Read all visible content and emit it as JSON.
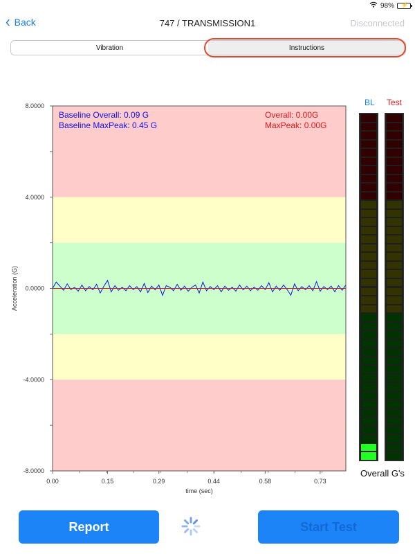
{
  "status_bar": {
    "battery_percent": "98%",
    "battery_level": 0.98
  },
  "nav": {
    "back_label": "Back",
    "title": "747 / TRANSMISSION1",
    "connection_status": "Disconnected"
  },
  "segments": {
    "vibration": "Vibration",
    "instructions": "Instructions",
    "highlighted": "Instructions"
  },
  "chart_data": {
    "type": "line",
    "ylabel": "Acceleration (G)",
    "xlabel": "time (sec)",
    "ylim": [
      -8,
      8
    ],
    "xlim": [
      0,
      0.8
    ],
    "y_ticks": [
      8,
      4,
      0,
      -4,
      -8
    ],
    "y_tick_labels": [
      "8.0000",
      "4.0000",
      "0.0000",
      "-4.0000",
      "-8.0000"
    ],
    "x_ticks": [
      0,
      0.15,
      0.29,
      0.44,
      0.58,
      0.73
    ],
    "x_tick_labels": [
      "0.00",
      "0.15",
      "0.29",
      "0.44",
      "0.58",
      "0.73"
    ],
    "bands": [
      {
        "from": 4,
        "to": 8,
        "color": "#ffcccc"
      },
      {
        "from": 2,
        "to": 4,
        "color": "#ffffc8"
      },
      {
        "from": -2,
        "to": 2,
        "color": "#ccffcc"
      },
      {
        "from": -4,
        "to": -2,
        "color": "#ffffc8"
      },
      {
        "from": -8,
        "to": -4,
        "color": "#ffcccc"
      }
    ],
    "annotations_left": [
      "Baseline Overall: 0.09 G",
      "Baseline MaxPeak: 0.45 G"
    ],
    "annotations_right": [
      "Overall: 0.00G",
      "MaxPeak: 0.00G"
    ],
    "series": [
      {
        "color": "#1010ee",
        "x": [
          0.0,
          0.01,
          0.02,
          0.03,
          0.04,
          0.05,
          0.06,
          0.07,
          0.08,
          0.09,
          0.1,
          0.11,
          0.12,
          0.13,
          0.14,
          0.15,
          0.16,
          0.17,
          0.18,
          0.19,
          0.2,
          0.21,
          0.22,
          0.23,
          0.24,
          0.25,
          0.26,
          0.27,
          0.28,
          0.29,
          0.3,
          0.31,
          0.32,
          0.33,
          0.34,
          0.35,
          0.36,
          0.37,
          0.38,
          0.39,
          0.4,
          0.41,
          0.42,
          0.43,
          0.44,
          0.45,
          0.46,
          0.47,
          0.48,
          0.49,
          0.5,
          0.51,
          0.52,
          0.53,
          0.54,
          0.55,
          0.56,
          0.57,
          0.58,
          0.59,
          0.6,
          0.61,
          0.62,
          0.63,
          0.64,
          0.65,
          0.66,
          0.67,
          0.68,
          0.69,
          0.7,
          0.71,
          0.72,
          0.73,
          0.74,
          0.75,
          0.76,
          0.77,
          0.78,
          0.79,
          0.8
        ],
        "values": [
          0.0,
          0.28,
          0.1,
          -0.08,
          0.2,
          -0.05,
          0.05,
          -0.12,
          0.15,
          -0.1,
          0.08,
          -0.06,
          0.18,
          -0.2,
          0.1,
          0.35,
          -0.15,
          0.12,
          -0.08,
          0.05,
          -0.1,
          0.12,
          -0.05,
          0.08,
          -0.15,
          0.22,
          -0.18,
          0.1,
          -0.06,
          0.15,
          -0.3,
          0.12,
          0.05,
          -0.1,
          0.18,
          -0.08,
          0.1,
          -0.12,
          0.05,
          0.15,
          -0.2,
          0.28,
          -0.1,
          0.08,
          -0.05,
          0.12,
          -0.15,
          0.1,
          -0.08,
          0.05,
          -0.12,
          0.15,
          -0.06,
          0.1,
          -0.1,
          0.06,
          -0.08,
          0.12,
          -0.05,
          0.25,
          -0.15,
          0.1,
          -0.08,
          0.15,
          -0.05,
          -0.3,
          0.2,
          -0.1,
          0.08,
          -0.06,
          0.12,
          -0.1,
          0.3,
          -0.12,
          0.08,
          -0.05,
          0.1,
          -0.15,
          0.12,
          -0.08,
          0.15
        ]
      },
      {
        "color": "#e01818",
        "x": [
          0.0,
          0.8
        ],
        "values": [
          0.0,
          0.0
        ]
      }
    ]
  },
  "meters": {
    "bl_label": "BL",
    "test_label": "Test",
    "bl_label_color": "#1a7bf2",
    "test_label_color": "#e01818",
    "caption": "Overall G's",
    "segment_count": 40,
    "zones": [
      {
        "segments": 10,
        "color": "#320000"
      },
      {
        "segments": 13,
        "color": "#333300"
      },
      {
        "segments": 17,
        "color": "#003300"
      }
    ],
    "lit_color": "#22ff22",
    "bl_lit_segments": 2,
    "test_lit_segments": 0
  },
  "buttons": {
    "report": "Report",
    "start_test": "Start Test"
  },
  "colors": {
    "accent": "#1d84f7",
    "highlight_ring": "#e8452c"
  }
}
